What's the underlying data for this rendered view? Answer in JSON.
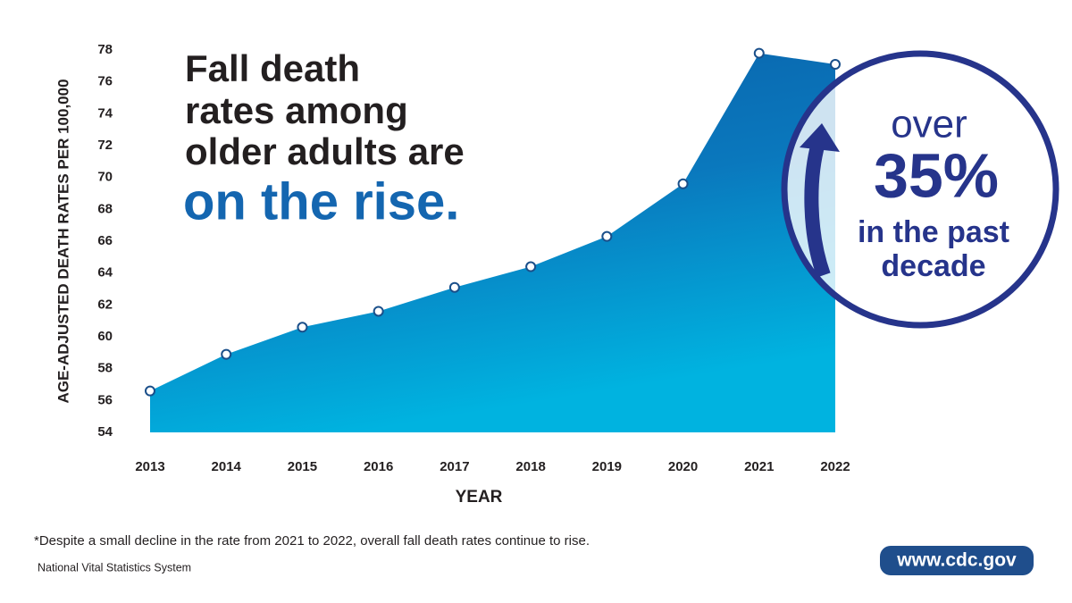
{
  "chart_data": {
    "type": "area",
    "title_lines": [
      "Fall death",
      "rates among",
      "older adults are"
    ],
    "title_highlight": "on the rise.",
    "ylabel": "AGE-ADJUSTED DEATH RATES PER 100,000",
    "xlabel": "YEAR",
    "categories": [
      "2013",
      "2014",
      "2015",
      "2016",
      "2017",
      "2018",
      "2019",
      "2020",
      "2021",
      "2022"
    ],
    "values": [
      56.6,
      58.9,
      60.6,
      61.6,
      63.1,
      64.4,
      66.3,
      69.6,
      77.8,
      77.1
    ],
    "color": "#0a70b6",
    "ylim": [
      54,
      78
    ],
    "yticks": [
      54,
      56,
      58,
      60,
      62,
      64,
      66,
      68,
      70,
      72,
      74,
      76,
      78
    ],
    "callout": {
      "top": "over",
      "figure": "35%",
      "bottom_lines": [
        "in the past",
        "decade"
      ]
    },
    "footnote": "*Despite a small decline in the rate from 2021 to 2022, overall fall death rates continue to rise.",
    "source": "National Vital Statistics System",
    "website": "www.cdc.gov"
  }
}
